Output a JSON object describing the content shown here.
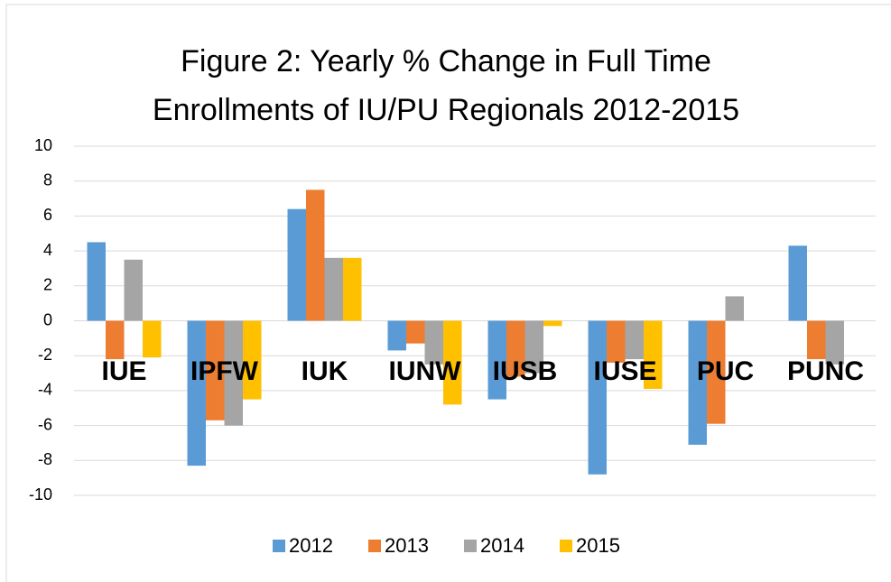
{
  "chart_data": {
    "type": "bar",
    "title_lines": [
      "Figure 2: Yearly % Change in Full Time",
      "Enrollments of IU/PU Regionals 2012-2015"
    ],
    "categories": [
      "IUE",
      "IPFW",
      "IUK",
      "IUNW",
      "IUSB",
      "IUSE",
      "PUC",
      "PUNC"
    ],
    "series": [
      {
        "name": "2012",
        "color": "#5b9bd5",
        "values": [
          4.5,
          -8.3,
          6.4,
          -1.7,
          -4.5,
          -8.8,
          -7.1,
          4.3
        ]
      },
      {
        "name": "2013",
        "color": "#ed7d31",
        "values": [
          -2.2,
          -5.7,
          7.5,
          -1.3,
          -3.2,
          -2.4,
          -5.9,
          -2.2
        ]
      },
      {
        "name": "2014",
        "color": "#a5a5a5",
        "values": [
          3.5,
          -6.0,
          3.6,
          -2.5,
          -3.0,
          -2.2,
          1.4,
          -2.5
        ]
      },
      {
        "name": "2015",
        "color": "#ffc000",
        "values": [
          -2.1,
          -4.5,
          3.6,
          -4.8,
          -0.3,
          -3.9,
          0,
          0
        ]
      }
    ],
    "ylim": [
      -10,
      10
    ],
    "yticks": [
      -10,
      -8,
      -6,
      -4,
      -2,
      0,
      2,
      4,
      6,
      8,
      10
    ],
    "grid": true,
    "legend": "bottom"
  }
}
